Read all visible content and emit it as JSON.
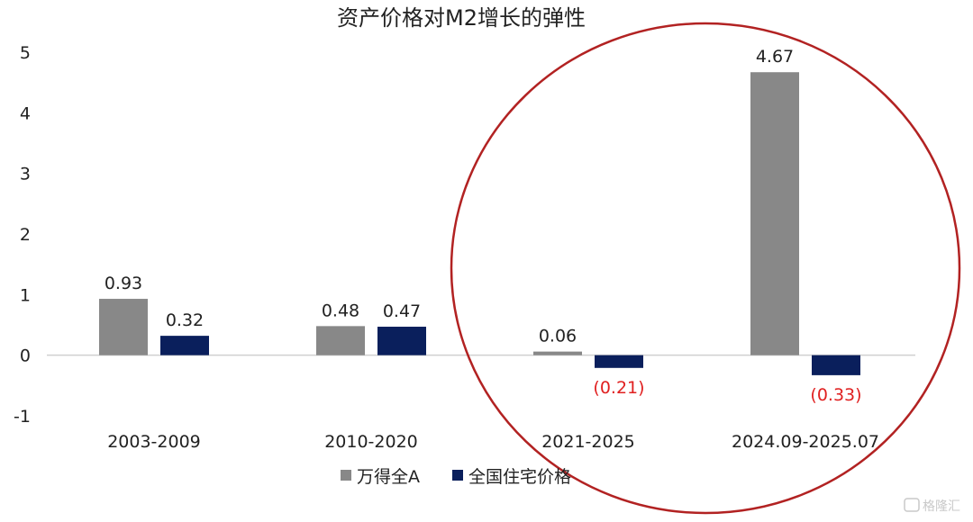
{
  "chart_data": {
    "type": "bar",
    "title": "资产价格对M2增长的弹性",
    "categories": [
      "2003-2009",
      "2010-2020",
      "2021-2025",
      "2024.09-2025.07"
    ],
    "series": [
      {
        "name": "万得全A",
        "color": "#888888",
        "values": [
          0.93,
          0.48,
          0.06,
          4.67
        ],
        "labels": [
          "0.93",
          "0.48",
          "0.06",
          "4.67"
        ]
      },
      {
        "name": "全国住宅价格",
        "color": "#0a1f5c",
        "values": [
          0.32,
          0.47,
          -0.21,
          -0.33
        ],
        "labels": [
          "0.32",
          "0.47",
          "(0.21)",
          "(0.33)"
        ]
      }
    ],
    "ylim": [
      -1,
      5
    ],
    "yticks": [
      "-1",
      "0",
      "1",
      "2",
      "3",
      "4",
      "5"
    ],
    "negative_label_color": "#e02020",
    "annotation_circle_color": "#b22222",
    "legend_position": "bottom"
  },
  "watermark": "格隆汇"
}
